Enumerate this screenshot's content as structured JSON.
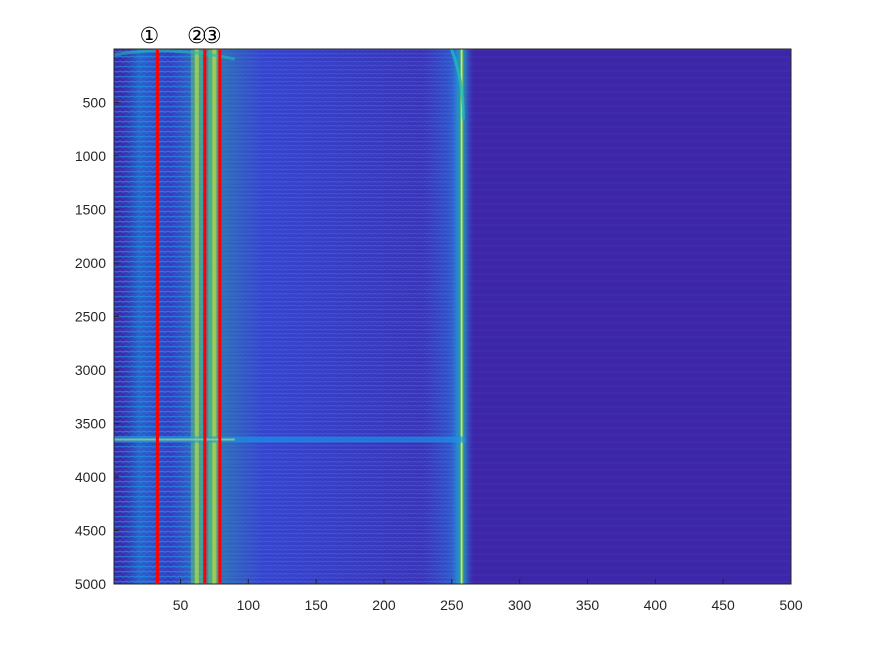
{
  "chart_data": {
    "type": "heatmap",
    "title": "",
    "xlabel": "",
    "ylabel": "",
    "xlim": [
      1,
      500
    ],
    "ylim": [
      1,
      5000
    ],
    "y_direction": "reverse",
    "x_ticks": [
      50,
      100,
      150,
      200,
      250,
      300,
      350,
      400,
      450,
      500
    ],
    "y_ticks": [
      500,
      1000,
      1500,
      2000,
      2500,
      3000,
      3500,
      4000,
      4500,
      5000
    ],
    "x_tick_labels": [
      "50",
      "100",
      "150",
      "200",
      "250",
      "300",
      "350",
      "400",
      "450",
      "500"
    ],
    "y_tick_labels": [
      "500",
      "1000",
      "1500",
      "2000",
      "2500",
      "3000",
      "3500",
      "4000",
      "4500",
      "5000"
    ],
    "colormap": [
      "#3e26a8",
      "#2f5ff2",
      "#1997e8",
      "#1fbab8",
      "#66cc68",
      "#d6b935",
      "#f9fb15"
    ],
    "background_color": "#3e26a8",
    "features": [
      {
        "type": "fringe_band",
        "x_start": 1,
        "x_end": 75,
        "peak_x": 62
      },
      {
        "type": "fringe_band",
        "x_start": 75,
        "x_end": 255,
        "peak_x": 75
      },
      {
        "type": "bright_ridge",
        "x": 257
      },
      {
        "type": "horizontal_seam",
        "y": 3650
      }
    ],
    "markers": [
      {
        "label": "①",
        "x": 33,
        "color": "#ff0000"
      },
      {
        "label": "②",
        "x": 68,
        "color": "#ff0000"
      },
      {
        "label": "③",
        "x": 79,
        "color": "#ff0000"
      }
    ],
    "grid": false,
    "legend": "none"
  }
}
